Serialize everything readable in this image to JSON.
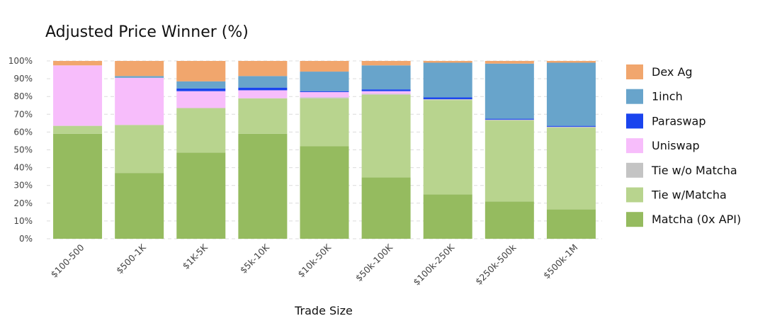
{
  "chart_data": {
    "type": "bar",
    "stacked": true,
    "title": "Adjusted Price Winner (%)",
    "xlabel": "Trade Size",
    "ylabel": "",
    "ylim": [
      0,
      100
    ],
    "yticks": [
      "0%",
      "10%",
      "20%",
      "30%",
      "40%",
      "50%",
      "60%",
      "70%",
      "80%",
      "90%",
      "100%"
    ],
    "grid": true,
    "legend_position": "right",
    "categories": [
      "$100-500",
      "$500-1K",
      "$1K-5K",
      "$5k-10K",
      "$10k-50K",
      "$50k-100K",
      "$100k-250K",
      "$250k-500k",
      "$500k-1M"
    ],
    "series": [
      {
        "name": "Matcha (0x API)",
        "color": "#95bb5f",
        "values": [
          59,
          37,
          48.5,
          59,
          52,
          34.5,
          25,
          21,
          16.5
        ]
      },
      {
        "name": "Tie w/Matcha",
        "color": "#b8d48e",
        "values": [
          4.5,
          27,
          25,
          20,
          27,
          46.5,
          53,
          45.5,
          46
        ]
      },
      {
        "name": "Tie w/o Matcha",
        "color": "#c4c4c4",
        "values": [
          0,
          0,
          0,
          0,
          0.5,
          0.5,
          0.5,
          0.5,
          0.5
        ]
      },
      {
        "name": "Uniswap",
        "color": "#f7bdfb",
        "values": [
          34,
          26.5,
          9.5,
          4.5,
          3,
          1.5,
          0,
          0,
          0
        ]
      },
      {
        "name": "Paraswap",
        "color": "#1a44ee",
        "values": [
          0,
          0,
          1.5,
          1.5,
          0.5,
          1,
          1,
          0.5,
          0.5
        ]
      },
      {
        "name": "1inch",
        "color": "#68a4cb",
        "values": [
          0,
          1,
          4,
          6.5,
          11,
          13.5,
          19.5,
          31,
          35.5
        ]
      },
      {
        "name": "Dex Ag",
        "color": "#f1a66d",
        "values": [
          2.5,
          8.5,
          11.5,
          8.5,
          6,
          2.5,
          1,
          1.5,
          1
        ]
      }
    ],
    "legend_order": [
      "Dex Ag",
      "1inch",
      "Paraswap",
      "Uniswap",
      "Tie w/o Matcha",
      "Tie w/Matcha",
      "Matcha (0x API)"
    ]
  }
}
